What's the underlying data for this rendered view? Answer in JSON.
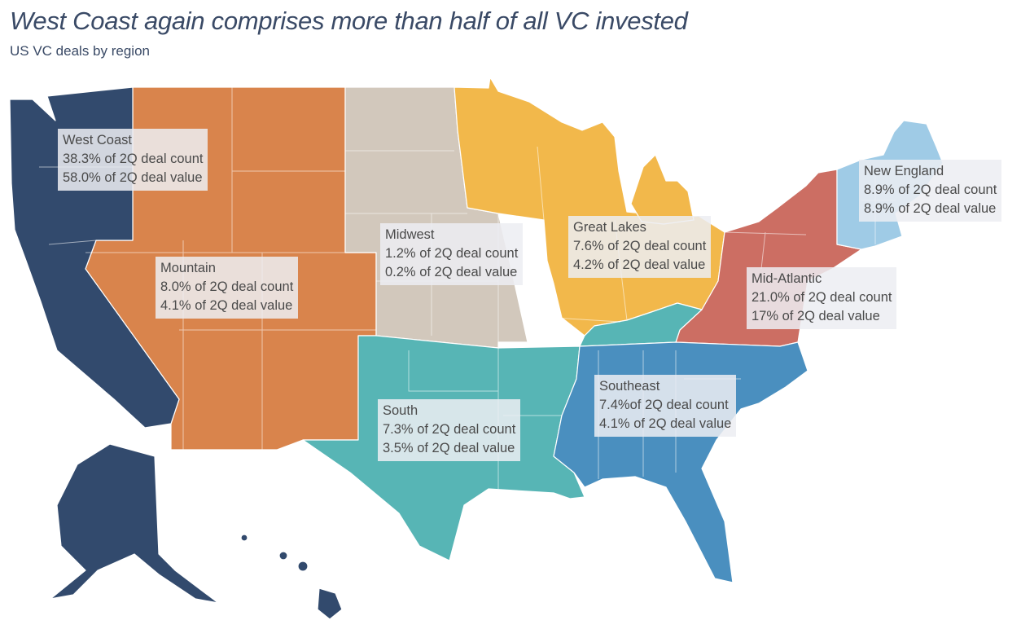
{
  "header": {
    "title": "West Coast again comprises more than half of all VC invested",
    "subtitle": "US VC deals by region"
  },
  "regions": {
    "west_coast": {
      "name": "West Coast",
      "count": "38.3% of 2Q deal count",
      "value": "58.0% of 2Q deal value",
      "color": "#324a6d",
      "count_pct": 38.3,
      "value_pct": 58.0
    },
    "mountain": {
      "name": "Mountain",
      "count": "8.0% of 2Q deal count",
      "value": "4.1% of 2Q deal value",
      "color": "#d9844c",
      "count_pct": 8.0,
      "value_pct": 4.1
    },
    "midwest": {
      "name": "Midwest",
      "count": "1.2% of 2Q deal count",
      "value": "0.2% of 2Q deal value",
      "color": "#d2c8bc",
      "count_pct": 1.2,
      "value_pct": 0.2
    },
    "great_lakes": {
      "name": "Great Lakes",
      "count": "7.6% of 2Q deal count",
      "value": "4.2% of 2Q deal value",
      "color": "#f2b84b",
      "count_pct": 7.6,
      "value_pct": 4.2
    },
    "new_england": {
      "name": "New England",
      "count": "8.9% of 2Q deal count",
      "value": "8.9% of 2Q deal value",
      "color": "#9fcbe6",
      "count_pct": 8.9,
      "value_pct": 8.9
    },
    "mid_atlantic": {
      "name": "Mid-Atlantic",
      "count": "21.0% of 2Q deal count",
      "value": "17% of 2Q deal value",
      "color": "#cc6e63",
      "count_pct": 21.0,
      "value_pct": 17
    },
    "south": {
      "name": "South",
      "count": "7.3% of 2Q deal count",
      "value": "3.5% of 2Q deal value",
      "color": "#57b5b5",
      "count_pct": 7.3,
      "value_pct": 3.5
    },
    "southeast": {
      "name": "Southeast",
      "count": "7.4%of 2Q deal count",
      "value": "4.1% of 2Q deal value",
      "color": "#4a8fbf",
      "count_pct": 7.4,
      "value_pct": 4.1
    }
  }
}
